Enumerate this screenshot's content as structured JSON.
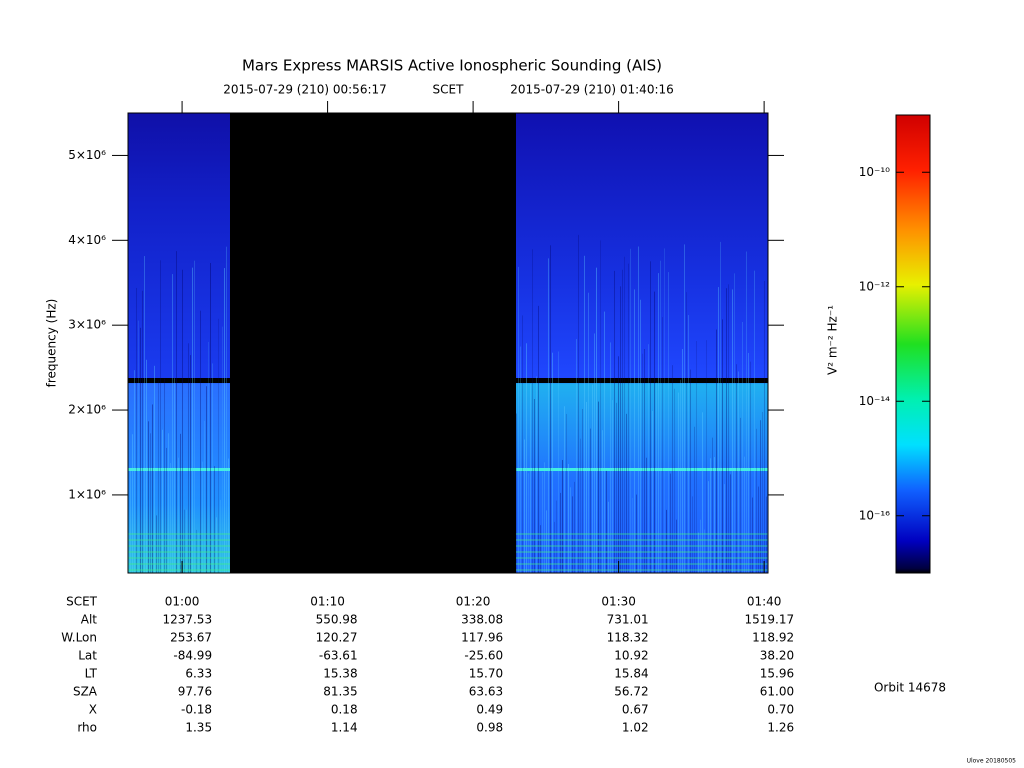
{
  "chart_data": {
    "type": "spectrogram",
    "title": "Mars Express MARSIS Active Ionospheric Sounding (AIS)",
    "subtitle_start": "2015-07-29 (210) 00:56:17",
    "subtitle_middle": "SCET",
    "subtitle_end": "2015-07-29 (210) 01:40:16",
    "y_label": "frequency (Hz)",
    "ylim": [
      80000,
      5500000
    ],
    "yticks": [
      {
        "value": 1000000,
        "label": "1×10⁶"
      },
      {
        "value": 2000000,
        "label": "2×10⁶"
      },
      {
        "value": 3000000,
        "label": "3×10⁶"
      },
      {
        "value": 4000000,
        "label": "4×10⁶"
      },
      {
        "value": 5000000,
        "label": "5×10⁶"
      }
    ],
    "xlim": [
      "00:56:17",
      "01:40:16"
    ],
    "xticks": [
      "01:00",
      "01:10",
      "01:20",
      "01:30",
      "01:40"
    ],
    "x_row_label": "SCET",
    "ephemeris": [
      {
        "label": "Alt",
        "values": [
          "1237.53",
          "550.98",
          "338.08",
          "731.01",
          "1519.17"
        ]
      },
      {
        "label": "W.Lon",
        "values": [
          "253.67",
          "120.27",
          "117.96",
          "118.32",
          "118.92"
        ]
      },
      {
        "label": "Lat",
        "values": [
          "-84.99",
          "-63.61",
          "-25.60",
          "10.92",
          "38.20"
        ]
      },
      {
        "label": "LT",
        "values": [
          "6.33",
          "15.38",
          "15.70",
          "15.84",
          "15.96"
        ]
      },
      {
        "label": "SZA",
        "values": [
          "97.76",
          "81.35",
          "63.63",
          "56.72",
          "61.00"
        ]
      },
      {
        "label": "X",
        "values": [
          "-0.18",
          "0.18",
          "0.49",
          "0.67",
          "0.70"
        ]
      },
      {
        "label": "rho",
        "values": [
          "1.35",
          "1.14",
          "0.98",
          "1.02",
          "1.26"
        ]
      }
    ],
    "colorbar": {
      "label": "V² m⁻² Hz⁻¹",
      "log_scale": true,
      "clim": [
        1e-17,
        1e-09
      ],
      "ticks": [
        {
          "value": 1e-10,
          "label": "10⁻¹⁰"
        },
        {
          "value": 1e-12,
          "label": "10⁻¹²"
        },
        {
          "value": 1e-14,
          "label": "10⁻¹⁴"
        },
        {
          "value": 1e-16,
          "label": "10⁻¹⁶"
        }
      ]
    },
    "orbit": "Orbit 14678",
    "credit": "Ulove 20180505"
  }
}
